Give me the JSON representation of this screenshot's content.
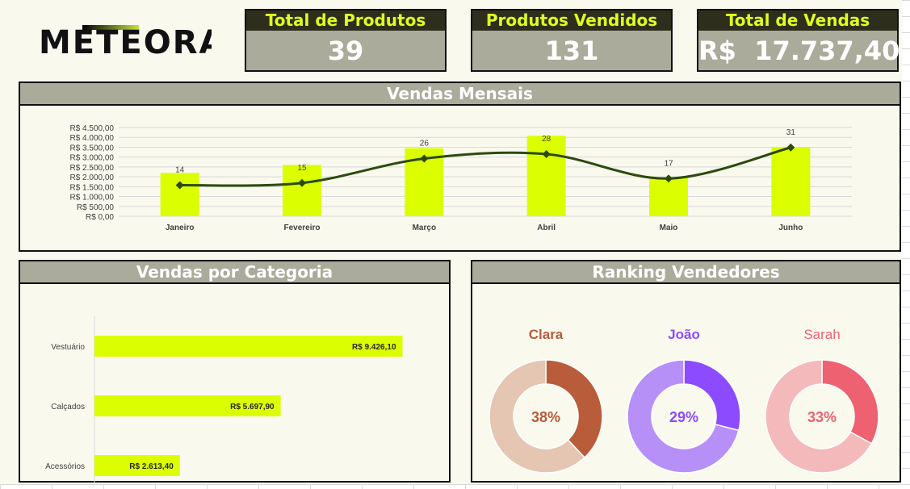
{
  "logo_text": "METEORA",
  "kpis": [
    {
      "title": "Total de Produtos",
      "value": "39"
    },
    {
      "title": "Produtos Vendidos",
      "value": "131"
    },
    {
      "title": "Total de Vendas",
      "value": "R$  17.737,40"
    }
  ],
  "panels": {
    "monthly_title": "Vendas Mensais",
    "category_title": "Vendas por Categoria",
    "ranking_title": "Ranking Vendedores"
  },
  "colors": {
    "bar": "#dcff00",
    "line": "#2c4a0e",
    "header_dark": "#2e2e1c",
    "header_gray": "#abab9b",
    "panel_bg": "#f9f9ee",
    "accent_text": "#dfff1f"
  },
  "chart_data": [
    {
      "type": "bar",
      "title": "Vendas Mensais",
      "categories": [
        "Janeiro",
        "Fevereiro",
        "Março",
        "Abril",
        "Maio",
        "Junho"
      ],
      "ylim": [
        0,
        4500
      ],
      "y_ticks": [
        "R$ 0,00",
        "R$ 500,00",
        "R$ 1.000,00",
        "R$ 1.500,00",
        "R$ 2.000,00",
        "R$ 2.500,00",
        "R$ 3.000,00",
        "R$ 3.500,00",
        "R$ 4.000,00",
        "R$ 4.500,00"
      ],
      "grid": true,
      "series": [
        {
          "values": [
            2200,
            2600,
            3450,
            4080,
            1950,
            3520
          ]
        },
        {
          "values": [
            14,
            15,
            26,
            28,
            17,
            31
          ],
          "labels": [
            "14",
            "15",
            "26",
            "28",
            "17",
            "31"
          ],
          "y_range": [
            0,
            40
          ]
        }
      ]
    },
    {
      "type": "bar",
      "title": "Vendas por Categoria",
      "orientation": "horizontal",
      "categories": [
        "Vestuário",
        "Calçados",
        "Acessórios"
      ],
      "values": [
        9426.1,
        5697.9,
        2613.4
      ],
      "labels": [
        "R$ 9.426,10",
        "R$ 5.697,90",
        "R$ 2.613,40"
      ],
      "xlim": [
        0,
        10500
      ]
    },
    {
      "type": "pie",
      "title": "Ranking Vendedores",
      "sellers": [
        {
          "name": "Clara",
          "value": 38,
          "label": "38%",
          "color": "#b85c3a",
          "rest_color": "#e5c6b3"
        },
        {
          "name": "João",
          "value": 29,
          "label": "29%",
          "color": "#8c4bff",
          "rest_color": "#b690f7"
        },
        {
          "name": "Sarah",
          "value": 33,
          "label": "33%",
          "color": "#ee6170",
          "rest_color": "#f4b9bb"
        }
      ]
    }
  ]
}
